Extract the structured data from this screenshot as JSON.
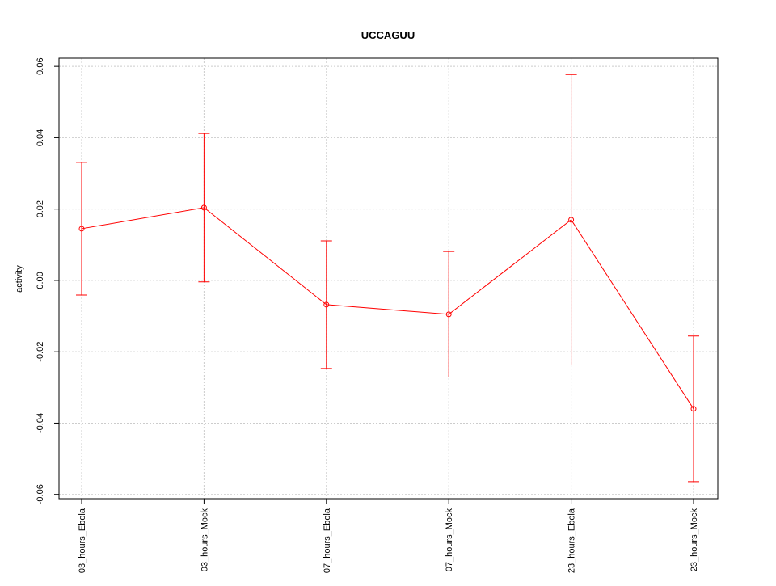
{
  "chart_data": {
    "type": "line",
    "title": "UCCAGUU",
    "y_label": "activity",
    "categories": [
      "03_hours_Ebola",
      "03_hours_Mock",
      "07_hours_Ebola",
      "07_hours_Mock",
      "23_hours_Ebola",
      "23_hours_Mock"
    ],
    "series": [
      {
        "name": "activity",
        "color": "#ff0000",
        "values": [
          0.0145,
          0.0204,
          -0.0068,
          -0.0095,
          0.017,
          -0.036
        ],
        "errors": [
          0.0186,
          0.0208,
          0.0179,
          0.0176,
          0.0407,
          0.0204
        ]
      }
    ],
    "ylim": [
      -0.0612,
      0.0623
    ],
    "yticks": [
      -0.06,
      -0.04,
      -0.02,
      {
        "value": 0,
        "label": "0.00"
      },
      0.02,
      0.04,
      0.06
    ],
    "grid": true
  }
}
